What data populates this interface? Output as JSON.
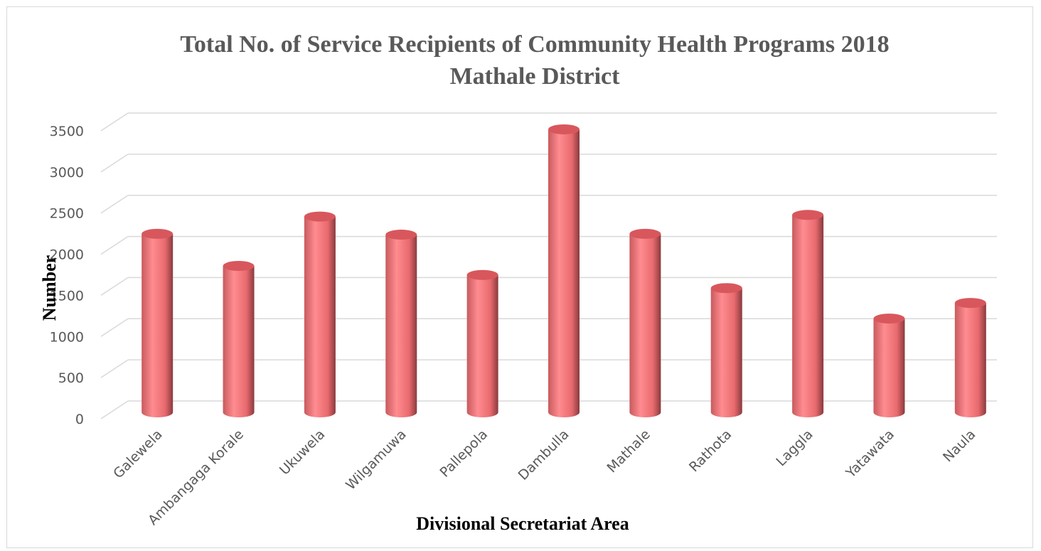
{
  "chart_data": {
    "type": "bar",
    "title_line1": "Total No. of Service Recipients of Community Health Programs 2018",
    "title_line2": "Mathale District",
    "xlabel": "Divisional Secretariat Area",
    "ylabel": "Number",
    "categories": [
      "Galewela",
      "Ambangaga Korale",
      "Ukuwela",
      "Wilgamuwa",
      "Pallepola",
      "Dambulla",
      "Mathale",
      "Rathota",
      "Laggla",
      "Yatawata",
      "Naula"
    ],
    "values": [
      2170,
      1780,
      2380,
      2160,
      1670,
      3440,
      2170,
      1510,
      2400,
      1140,
      1330
    ],
    "yticks": [
      "0",
      "500",
      "1000",
      "1500",
      "2000",
      "2500",
      "3000",
      "3500"
    ],
    "ylim": [
      0,
      3500
    ],
    "grid": true,
    "legend": "none",
    "bar_color": "#ff7c80"
  }
}
